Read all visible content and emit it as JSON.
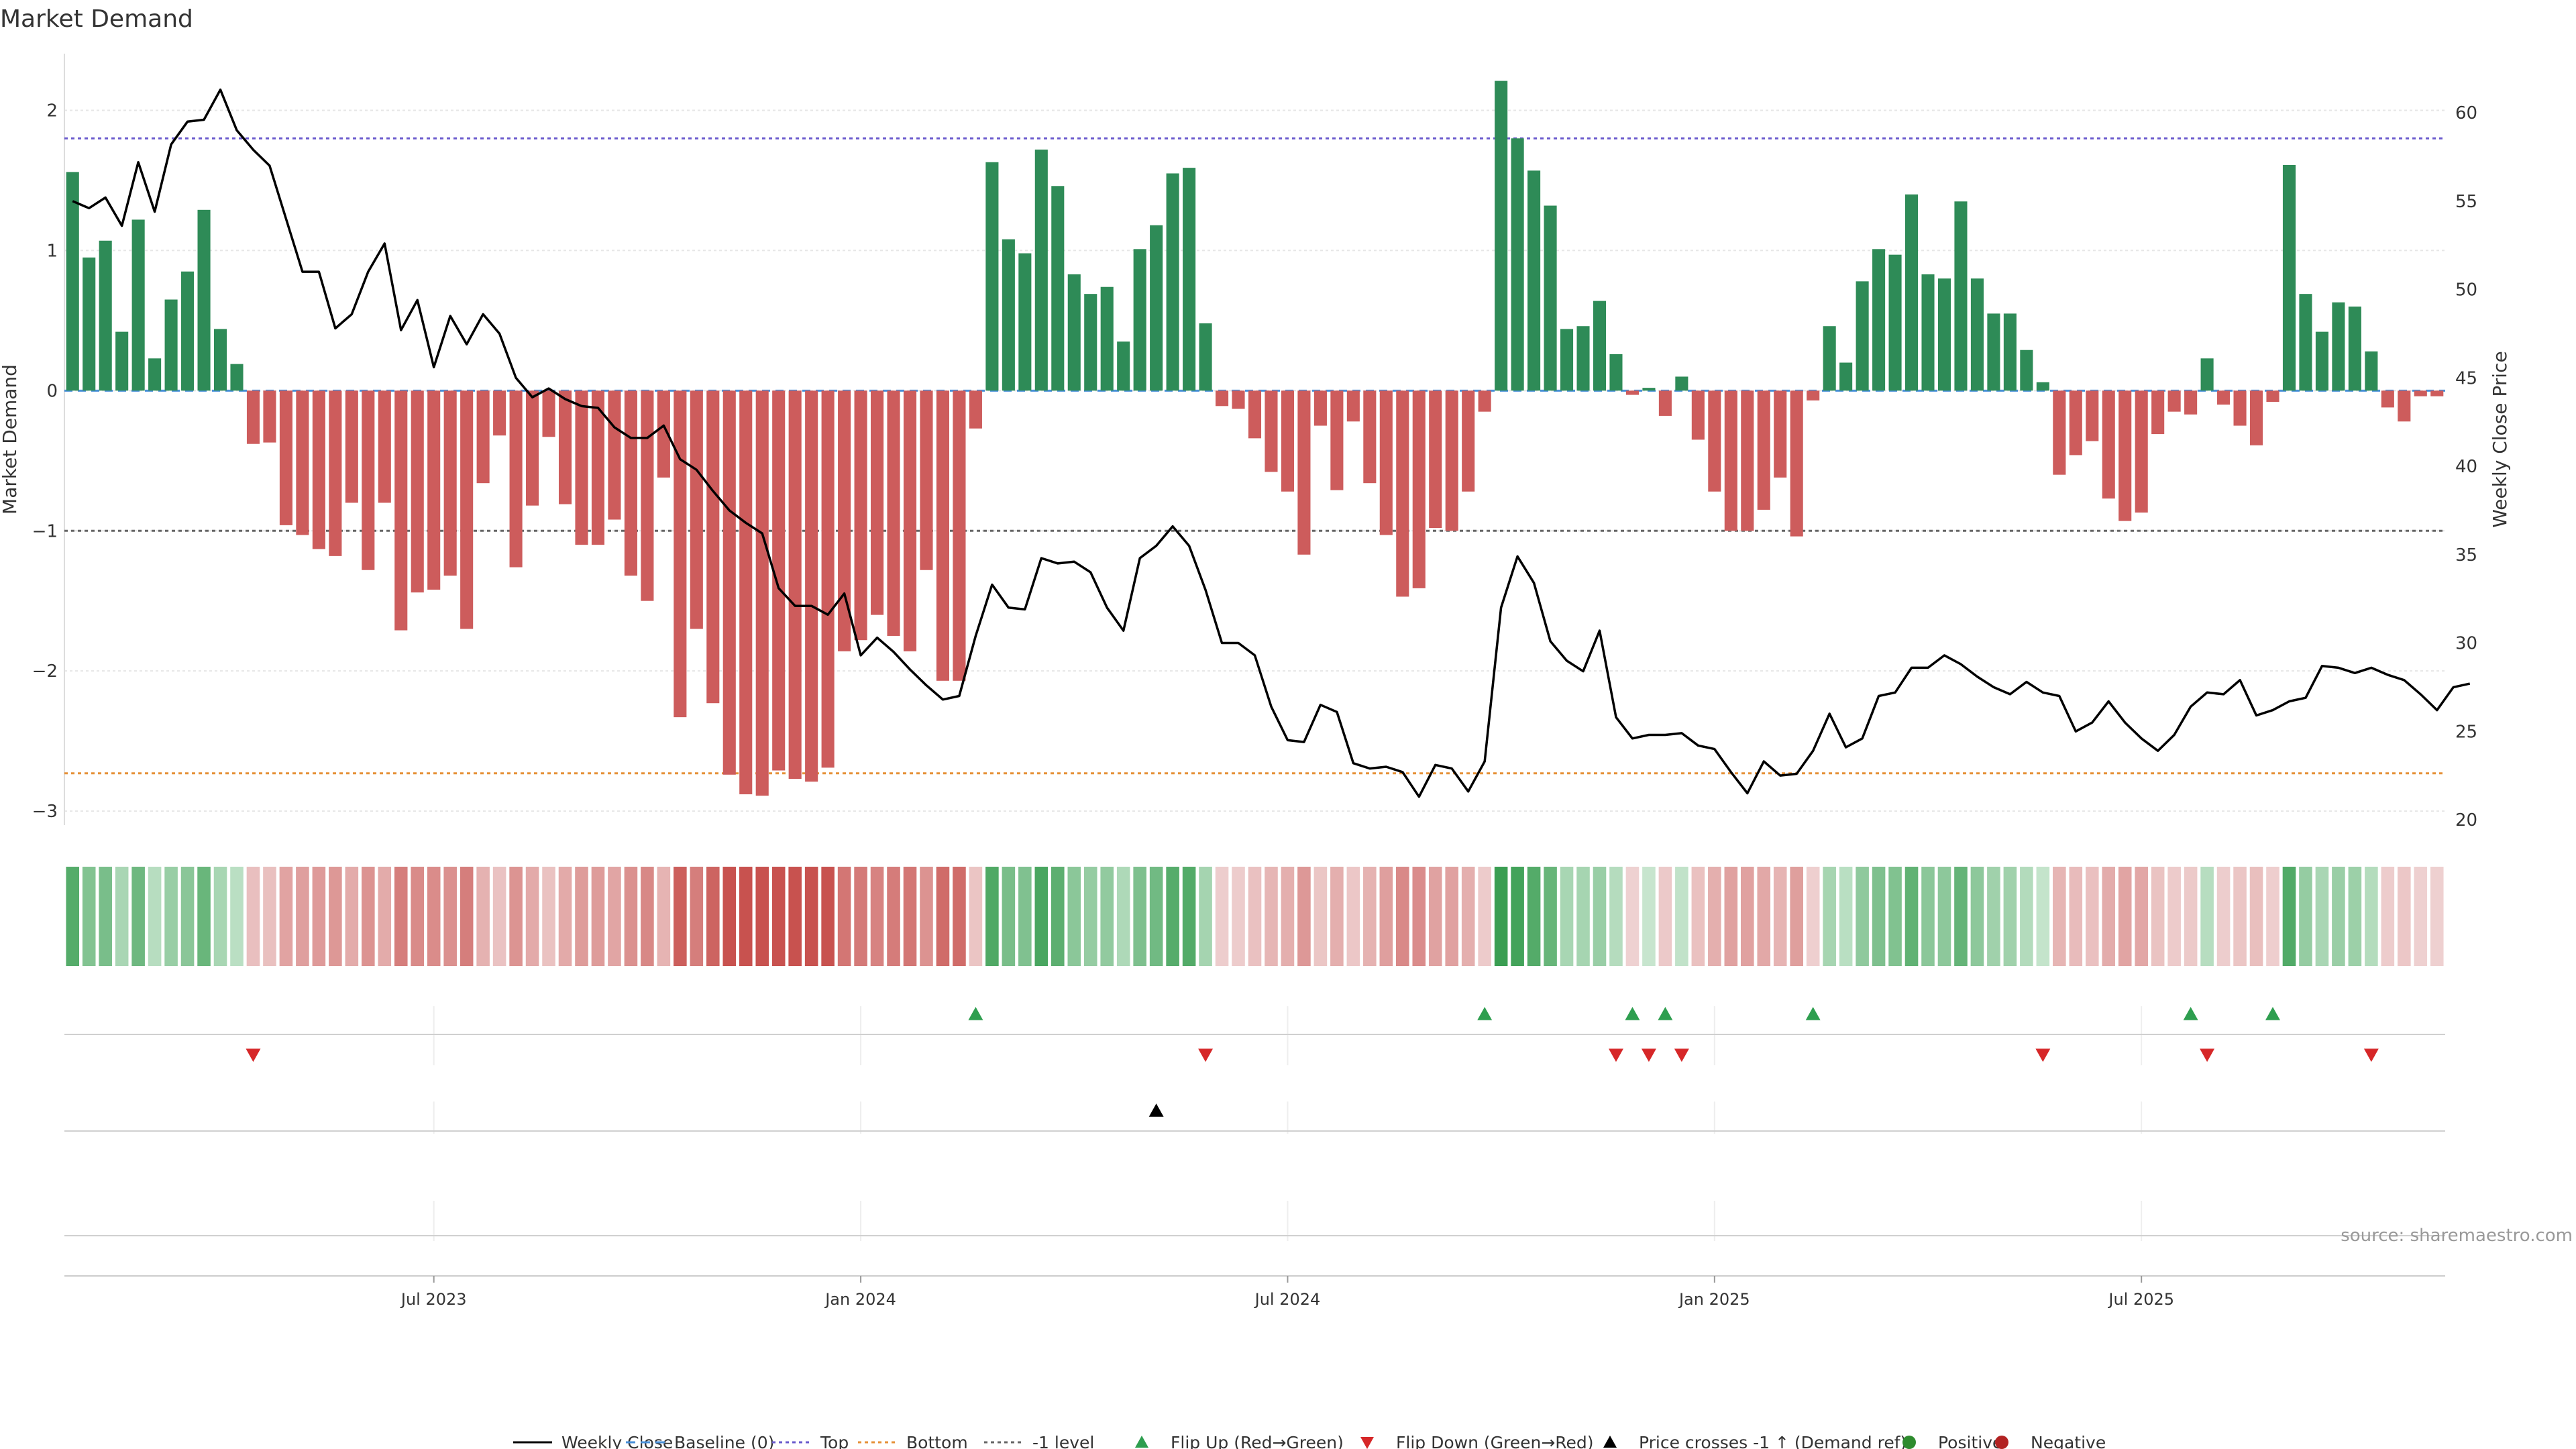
{
  "chart_data": {
    "type": "bar",
    "title": "Market Demand",
    "ylabel": "Market Demand",
    "y2label": "Weekly Close Price",
    "source": "source: sharemaestro.com",
    "ylim": [
      -3.1,
      2.5
    ],
    "y2lim": [
      20,
      63
    ],
    "y_ticks": [
      2,
      1,
      0,
      -1,
      -2,
      -3
    ],
    "y_tick_labels": [
      "2",
      "1",
      "0",
      "−1",
      "−2",
      "−3"
    ],
    "y2_ticks": [
      60,
      55,
      50,
      45,
      40,
      35,
      30,
      25,
      20
    ],
    "x_ticks": [
      {
        "label": "Jul 2023",
        "week": 22
      },
      {
        "label": "Jan 2024",
        "week": 48
      },
      {
        "label": "Jul 2024",
        "week": 74
      },
      {
        "label": "Jan 2025",
        "week": 100
      },
      {
        "label": "Jul 2025",
        "week": 126
      }
    ],
    "levels": {
      "top": 1.8,
      "bottom": -2.73,
      "minus_one": -1,
      "baseline": 0
    },
    "colors": {
      "positive": "#2e8b57",
      "negative": "#cd5c5c",
      "price": "#000000",
      "top": "#6a5acd",
      "bottom": "#e69138",
      "minus_one": "#666666",
      "baseline": "#4a90d9",
      "flip_up": "#2e9e4f",
      "flip_down": "#d62728",
      "cross": "#000000"
    },
    "demand": [
      1.56,
      0.95,
      1.07,
      0.42,
      1.22,
      0.23,
      0.65,
      0.85,
      1.29,
      0.44,
      0.19,
      -0.38,
      -0.37,
      -0.96,
      -1.03,
      -1.13,
      -1.18,
      -0.8,
      -1.28,
      -0.8,
      -1.71,
      -1.44,
      -1.42,
      -1.32,
      -1.7,
      -0.66,
      -0.32,
      -1.26,
      -0.82,
      -0.33,
      -0.81,
      -1.1,
      -1.1,
      -0.92,
      -1.32,
      -1.5,
      -0.62,
      -2.33,
      -1.7,
      -2.23,
      -2.74,
      -2.88,
      -2.89,
      -2.71,
      -2.77,
      -2.79,
      -2.69,
      -1.86,
      -1.78,
      -1.6,
      -1.75,
      -1.86,
      -1.28,
      -2.07,
      -2.07,
      -0.27,
      1.63,
      1.08,
      0.98,
      1.72,
      1.46,
      0.83,
      0.69,
      0.74,
      0.35,
      1.01,
      1.18,
      1.55,
      1.59,
      0.48,
      -0.11,
      -0.13,
      -0.34,
      -0.58,
      -0.72,
      -1.17,
      -0.25,
      -0.71,
      -0.22,
      -0.66,
      -1.03,
      -1.47,
      -1.41,
      -0.98,
      -1.0,
      -0.72,
      -0.15,
      2.21,
      1.8,
      1.57,
      1.32,
      0.44,
      0.46,
      0.64,
      0.26,
      -0.03,
      0.02,
      -0.18,
      0.1,
      -0.35,
      -0.72,
      -1.0,
      -1.0,
      -0.85,
      -0.62,
      -1.04,
      -0.07,
      0.46,
      0.2,
      0.78,
      1.01,
      0.97,
      1.4,
      0.83,
      0.8,
      1.35,
      0.8,
      0.55,
      0.55,
      0.29,
      0.06,
      -0.6,
      -0.46,
      -0.36,
      -0.77,
      -0.93,
      -0.87,
      -0.31,
      -0.15,
      -0.17,
      0.23,
      -0.1,
      -0.25,
      -0.39,
      -0.08,
      1.61,
      0.69,
      0.42,
      0.63,
      0.6,
      0.28,
      -0.12,
      -0.22,
      -0.04,
      -0.04
    ],
    "price": [
      55.0,
      54.6,
      55.2,
      53.6,
      57.2,
      54.4,
      58.2,
      59.5,
      59.6,
      61.3,
      59.0,
      57.9,
      57.0,
      54.0,
      51.0,
      51.0,
      47.8,
      48.6,
      51.0,
      52.6,
      47.7,
      49.4,
      45.6,
      48.5,
      46.9,
      48.6,
      47.5,
      45.0,
      43.9,
      44.4,
      43.8,
      43.4,
      43.3,
      42.2,
      41.6,
      41.6,
      42.3,
      40.4,
      39.8,
      38.6,
      37.5,
      36.8,
      36.2,
      33.1,
      32.1,
      32.1,
      31.6,
      32.8,
      29.3,
      30.3,
      29.5,
      28.5,
      27.6,
      26.8,
      27.0,
      30.4,
      33.3,
      32.0,
      31.9,
      34.8,
      34.5,
      34.6,
      34.0,
      32.0,
      30.7,
      34.8,
      35.5,
      36.6,
      35.5,
      33.0,
      30.0,
      30.0,
      29.3,
      26.4,
      24.5,
      24.4,
      26.5,
      26.1,
      23.2,
      22.9,
      23.0,
      22.7,
      21.3,
      23.1,
      22.9,
      21.6,
      23.3,
      32.0,
      34.9,
      33.4,
      30.1,
      29.0,
      28.4,
      30.7,
      25.8,
      24.6,
      24.8,
      24.8,
      24.9,
      24.2,
      24.0,
      22.7,
      21.5,
      23.3,
      22.5,
      22.6,
      23.9,
      26.0,
      24.1,
      24.6,
      27.0,
      27.2,
      28.6,
      28.6,
      29.3,
      28.8,
      28.1,
      27.5,
      27.1,
      27.8,
      27.2,
      27.0,
      25.0,
      25.5,
      26.7,
      25.5,
      24.6,
      23.9,
      24.8,
      26.4,
      27.2,
      27.1,
      27.9,
      25.9,
      26.2,
      26.7,
      26.9,
      28.7,
      28.6,
      28.3,
      28.6,
      28.2,
      27.9,
      27.1,
      26.2,
      27.5,
      27.7
    ],
    "flip_up_weeks": [
      55,
      86,
      95,
      97,
      106,
      129,
      134
    ],
    "flip_down_weeks": [
      11,
      69,
      94,
      96,
      98,
      120,
      130,
      140
    ],
    "cross_weeks": [
      66
    ],
    "legend": [
      {
        "label": "Weekly Close",
        "kind": "line",
        "color": "#000000"
      },
      {
        "label": "Baseline (0)",
        "kind": "dash",
        "color": "#4a90d9"
      },
      {
        "label": "Top",
        "kind": "dot",
        "color": "#6a5acd"
      },
      {
        "label": "Bottom",
        "kind": "dot",
        "color": "#e69138"
      },
      {
        "label": "-1 level",
        "kind": "dot",
        "color": "#666666"
      },
      {
        "label": "Flip Up (Red→Green)",
        "kind": "up",
        "color": "#2e9e4f"
      },
      {
        "label": "Flip Down (Green→Red)",
        "kind": "down",
        "color": "#d62728"
      },
      {
        "label": "Price crosses -1 ↑ (Demand ref)",
        "kind": "upblack",
        "color": "#000000"
      },
      {
        "label": "Positive",
        "kind": "circle",
        "color": "#2e8b2e"
      },
      {
        "label": "Negative",
        "kind": "circle",
        "color": "#b22222"
      }
    ]
  }
}
